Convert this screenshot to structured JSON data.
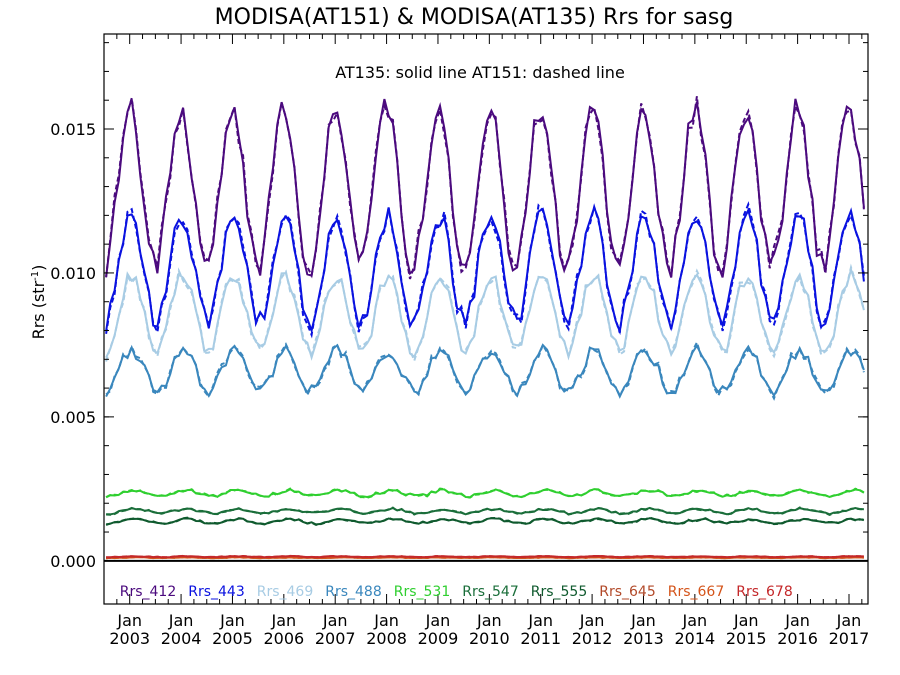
{
  "chart_data": {
    "type": "line",
    "title": "MODISA(AT151) & MODISA(AT135)  Rrs for sasg",
    "annotation": "AT135: solid line   AT151: dashed line",
    "ylabel_main": "Rrs (str",
    "ylabel_sup": "-1",
    "ylabel_close": ")",
    "xlabel": "",
    "xlim": [
      2002.5,
      2017.37
    ],
    "ylim": [
      -0.0015,
      0.0183
    ],
    "yticks": [
      0.0,
      0.005,
      0.01,
      0.015
    ],
    "ytick_labels": [
      "0.000",
      "0.005",
      "0.010",
      "0.015"
    ],
    "xticks": [
      {
        "x": 2003,
        "top": "Jan",
        "bottom": "2003"
      },
      {
        "x": 2004,
        "top": "Jan",
        "bottom": "2004"
      },
      {
        "x": 2005,
        "top": "Jan",
        "bottom": "2005"
      },
      {
        "x": 2006,
        "top": "Jan",
        "bottom": "2006"
      },
      {
        "x": 2007,
        "top": "Jan",
        "bottom": "2007"
      },
      {
        "x": 2008,
        "top": "Jan",
        "bottom": "2008"
      },
      {
        "x": 2009,
        "top": "Jan",
        "bottom": "2009"
      },
      {
        "x": 2010,
        "top": "Jan",
        "bottom": "2010"
      },
      {
        "x": 2011,
        "top": "Jan",
        "bottom": "2011"
      },
      {
        "x": 2012,
        "top": "Jan",
        "bottom": "2012"
      },
      {
        "x": 2013,
        "top": "Jan",
        "bottom": "2013"
      },
      {
        "x": 2014,
        "top": "Jan",
        "bottom": "2014"
      },
      {
        "x": 2015,
        "top": "Jan",
        "bottom": "2015"
      },
      {
        "x": 2016,
        "top": "Jan",
        "bottom": "2016"
      },
      {
        "x": 2017,
        "top": "Jan",
        "bottom": "2017"
      }
    ],
    "zero_line": 0.0,
    "grid": false,
    "legend_position": "bottom inside plot",
    "time_step_months": 1,
    "x_start": 2002.54,
    "series": [
      {
        "name": "Rrs_412",
        "color": "#4b0a7e",
        "peak": 0.0157,
        "trough": 0.0102,
        "phase": 0.0,
        "noise": 0.00045
      },
      {
        "name": "Rrs_443",
        "color": "#0a12e0",
        "peak": 0.012,
        "trough": 0.0083,
        "phase": 0.02,
        "noise": 0.00035
      },
      {
        "name": "Rrs_469",
        "color": "#a8cce4",
        "peak": 0.0099,
        "trough": 0.0073,
        "phase": 0.03,
        "noise": 0.00025
      },
      {
        "name": "Rrs_488",
        "color": "#3a87bd",
        "peak": 0.0073,
        "trough": 0.0059,
        "phase": 0.04,
        "noise": 0.0002
      },
      {
        "name": "Rrs_531",
        "color": "#2fcf2f",
        "peak": 0.00245,
        "trough": 0.00225,
        "phase": 0.1,
        "noise": 5e-05
      },
      {
        "name": "Rrs_547",
        "color": "#1a6e3a",
        "peak": 0.0018,
        "trough": 0.00165,
        "phase": 0.1,
        "noise": 4e-05
      },
      {
        "name": "Rrs_555",
        "color": "#0f5a2e",
        "peak": 0.00145,
        "trough": 0.0013,
        "phase": 0.1,
        "noise": 4e-05
      },
      {
        "name": "Rrs_645",
        "color": "#b24a2a",
        "peak": 0.00013,
        "trough": 0.00011,
        "phase": 0.1,
        "noise": 1e-05
      },
      {
        "name": "Rrs_667",
        "color": "#d4541a",
        "peak": 0.00012,
        "trough": 0.0001,
        "phase": 0.1,
        "noise": 1e-05
      },
      {
        "name": "Rrs_678",
        "color": "#c4282a",
        "peak": 0.00016,
        "trough": 0.00013,
        "phase": 0.1,
        "noise": 1e-05
      }
    ]
  }
}
